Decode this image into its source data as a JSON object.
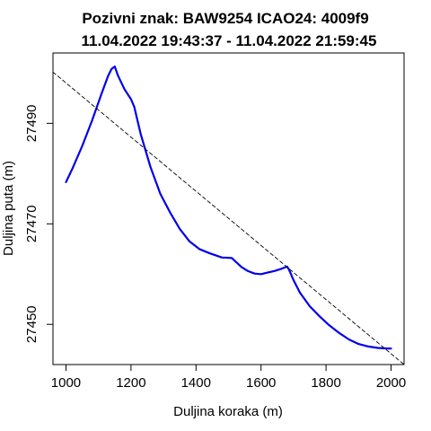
{
  "chart_data": {
    "type": "line",
    "title_line1": "Pozivni znak: BAW9254  ICAO24: 4009f9",
    "title_line2": "11.04.2022 19:43:37 - 11.04.2022 21:59:45",
    "xlabel": "Duljina koraka (m)",
    "ylabel": "Duljina puta (m)",
    "xlim": [
      960,
      2040
    ],
    "ylim": [
      27442,
      27504
    ],
    "x_ticks": [
      1000,
      1200,
      1400,
      1600,
      1800,
      2000
    ],
    "y_ticks": [
      27450,
      27470,
      27490
    ],
    "x_tick_labels": [
      "1000",
      "1200",
      "1400",
      "1600",
      "1800",
      "2000"
    ],
    "y_tick_labels": [
      "27450",
      "27470",
      "27490"
    ],
    "grid": false,
    "series": [
      {
        "style": "solid",
        "color": "#0000ee",
        "x": [
          1000,
          1020,
          1050,
          1080,
          1110,
          1130,
          1140,
          1150,
          1160,
          1180,
          1200,
          1210,
          1230,
          1260,
          1290,
          1320,
          1350,
          1380,
          1410,
          1440,
          1480,
          1510,
          1520,
          1540,
          1560,
          1580,
          1600,
          1620,
          1640,
          1660,
          1680,
          1685,
          1690,
          1700,
          1720,
          1750,
          1780,
          1810,
          1840,
          1870,
          1900,
          1930,
          1960,
          1990,
          2000
        ],
        "y": [
          27478.3,
          27481.0,
          27485.5,
          27490.5,
          27496.0,
          27499.5,
          27500.8,
          27501.3,
          27499.5,
          27496.8,
          27494.8,
          27493.3,
          27487.8,
          27481.3,
          27476.0,
          27472.3,
          27469.0,
          27466.5,
          27465.0,
          27464.2,
          27463.3,
          27463.2,
          27462.6,
          27461.4,
          27460.6,
          27460.1,
          27460.0,
          27460.3,
          27460.6,
          27461.0,
          27461.5,
          27461.0,
          27460.3,
          27458.8,
          27456.3,
          27453.6,
          27451.6,
          27449.8,
          27448.3,
          27447.0,
          27446.1,
          27445.6,
          27445.3,
          27445.2,
          27445.2
        ]
      },
      {
        "style": "dashed",
        "color": "#000000",
        "x": [
          960,
          2040
        ],
        "y": [
          27500.2,
          27442.0
        ]
      }
    ]
  }
}
